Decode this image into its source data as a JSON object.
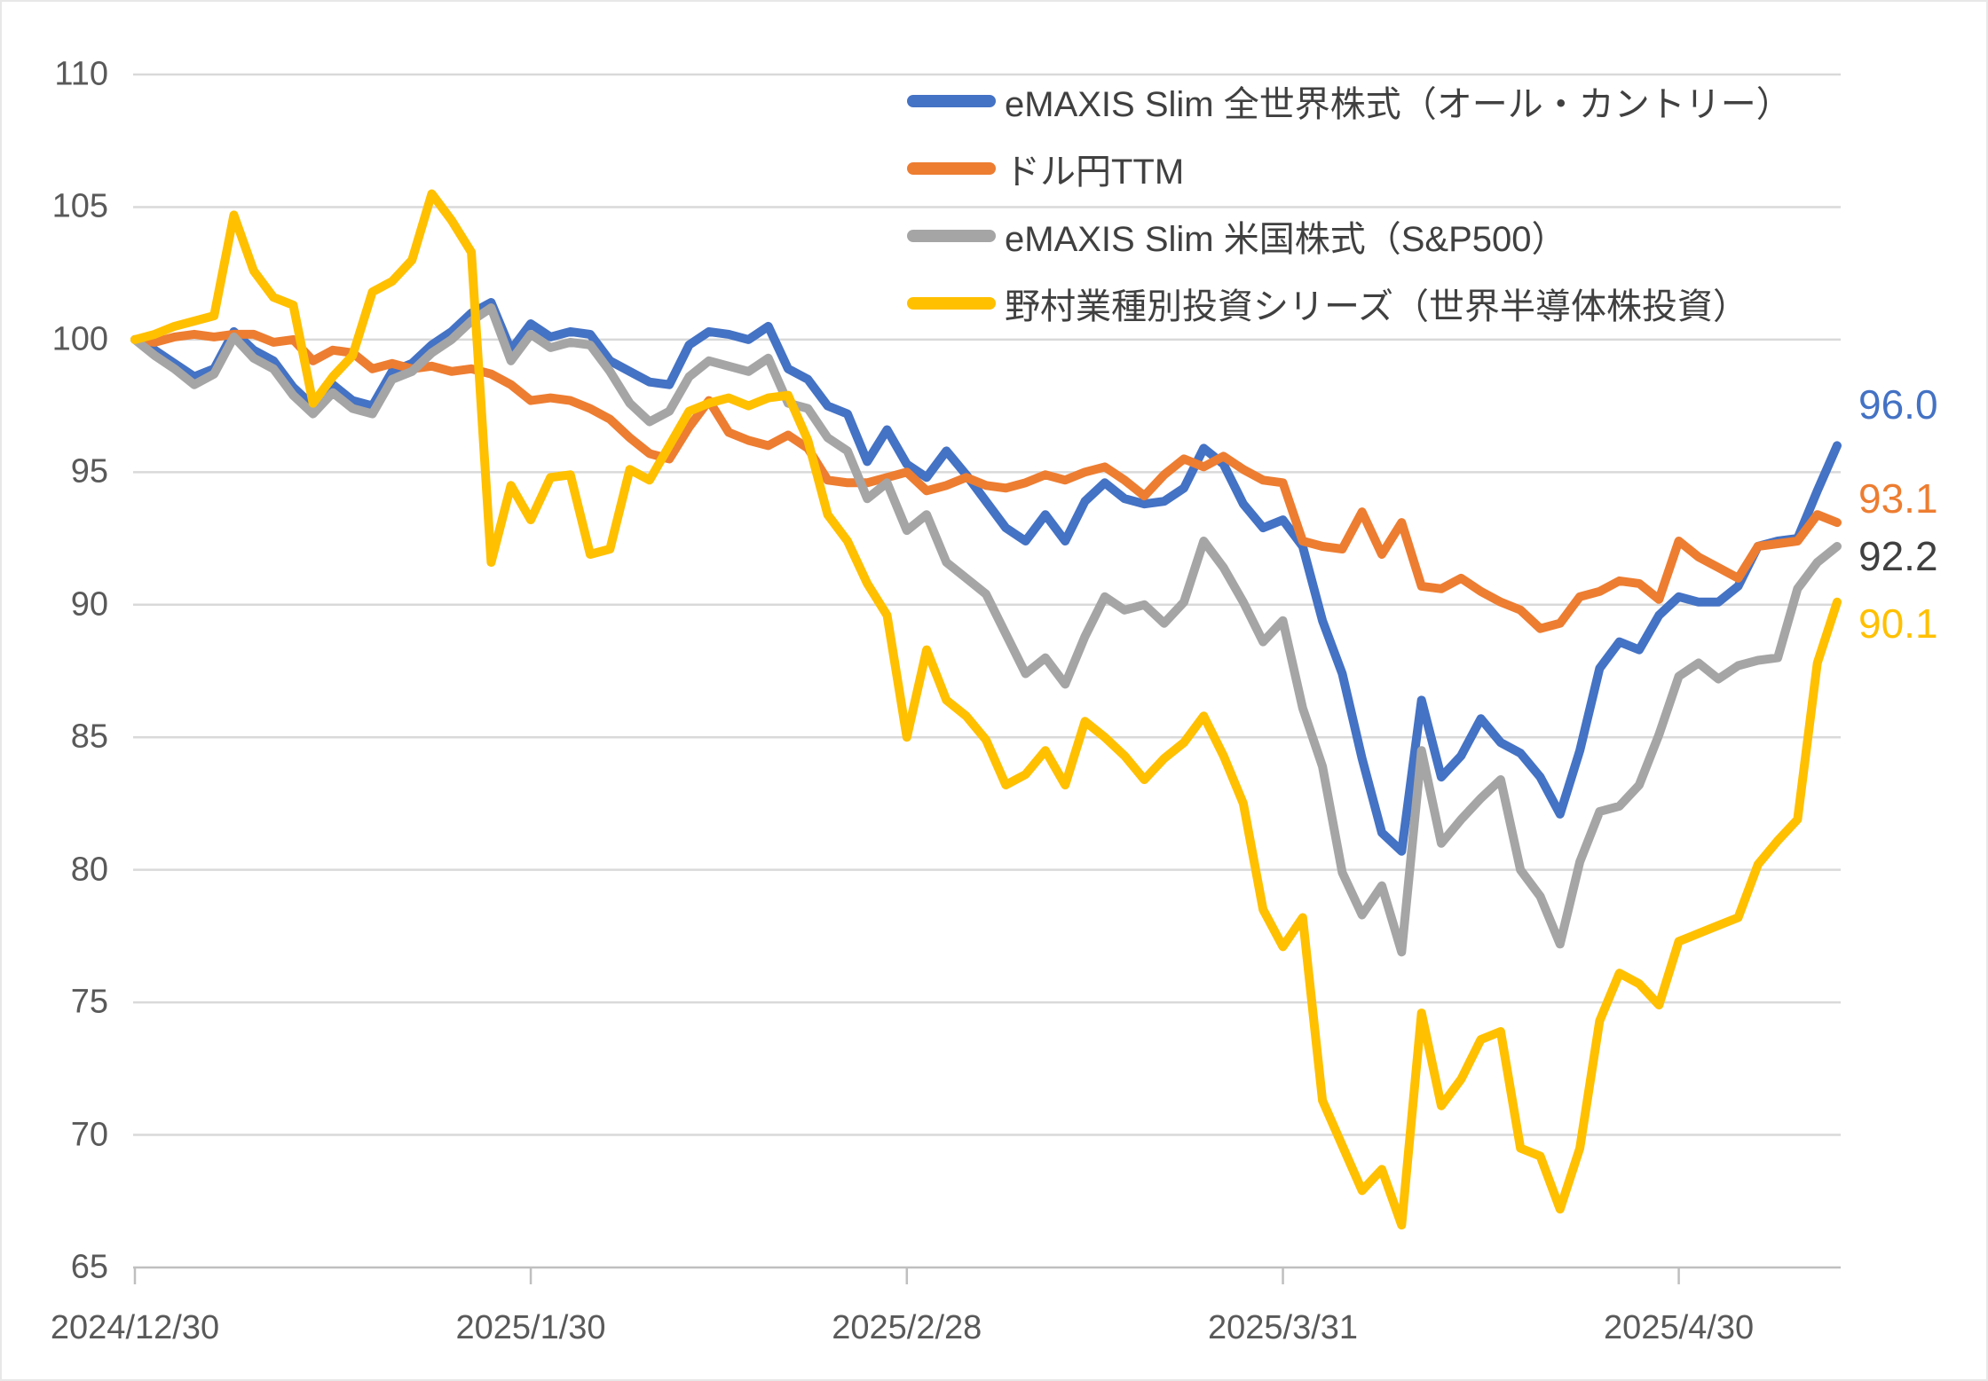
{
  "chart_data": {
    "type": "line",
    "title": "",
    "description": "Performance of four instruments indexed to 100 at 2024/12/30, daily values through mid-May 2025",
    "grid": true,
    "legend_position": "top-right-inside",
    "y_axis": {
      "min": 65,
      "max": 110,
      "step": 5,
      "ticks": [
        110,
        105,
        100,
        95,
        90,
        85,
        80,
        75,
        70,
        65
      ]
    },
    "x_axis": {
      "point_count": 87,
      "ticks": [
        {
          "label": "2024/12/30",
          "position_index": 0
        },
        {
          "label": "2025/1/30",
          "position_index": 20
        },
        {
          "label": "2025/2/28",
          "position_index": 39
        },
        {
          "label": "2025/3/31",
          "position_index": 58
        },
        {
          "label": "2025/4/30",
          "position_index": 78
        }
      ]
    },
    "series": [
      {
        "name": "eMAXIS Slim 全世界株式（オール・カントリー）",
        "color": "#4472C4",
        "end_label": "96.0",
        "end_label_color": "#4472C4",
        "values": [
          100,
          99.6,
          99.1,
          98.6,
          98.9,
          100.3,
          99.6,
          99.2,
          98.2,
          97.5,
          98.3,
          97.7,
          97.5,
          98.8,
          99.1,
          99.8,
          100.3,
          101.0,
          101.4,
          99.6,
          100.6,
          100.1,
          100.3,
          100.2,
          99.2,
          98.8,
          98.4,
          98.3,
          99.8,
          100.3,
          100.2,
          100.0,
          100.5,
          98.9,
          98.5,
          97.5,
          97.2,
          95.4,
          96.6,
          95.3,
          94.8,
          95.8,
          94.9,
          93.9,
          92.9,
          92.4,
          93.4,
          92.4,
          93.9,
          94.6,
          94.0,
          93.8,
          93.9,
          94.4,
          95.9,
          95.3,
          93.8,
          92.9,
          93.2,
          92.2,
          89.4,
          87.4,
          84.2,
          81.4,
          80.7,
          86.4,
          83.5,
          84.3,
          85.7,
          84.8,
          84.4,
          83.5,
          82.1,
          84.5,
          87.6,
          88.6,
          88.3,
          89.6,
          90.3,
          90.1,
          90.1,
          90.7,
          92.2,
          92.4,
          92.5,
          94.3,
          96.0
        ]
      },
      {
        "name": "ドル円TTM",
        "color": "#ED7D31",
        "end_label": "93.1",
        "end_label_color": "#ED7D31",
        "values": [
          100,
          99.9,
          100.1,
          100.2,
          100.1,
          100.2,
          100.2,
          99.9,
          100.0,
          99.2,
          99.6,
          99.5,
          98.9,
          99.1,
          98.9,
          99.0,
          98.8,
          98.9,
          98.7,
          98.3,
          97.7,
          97.8,
          97.7,
          97.4,
          97.0,
          96.3,
          95.7,
          95.5,
          96.7,
          97.7,
          96.5,
          96.2,
          96.0,
          96.4,
          95.9,
          94.7,
          94.6,
          94.6,
          94.8,
          95.0,
          94.3,
          94.5,
          94.8,
          94.5,
          94.4,
          94.6,
          94.9,
          94.7,
          95.0,
          95.2,
          94.7,
          94.1,
          94.9,
          95.5,
          95.2,
          95.6,
          95.1,
          94.7,
          94.6,
          92.4,
          92.2,
          92.1,
          93.5,
          91.9,
          93.1,
          90.7,
          90.6,
          91.0,
          90.5,
          90.1,
          89.8,
          89.1,
          89.3,
          90.3,
          90.5,
          90.9,
          90.8,
          90.2,
          92.4,
          91.8,
          91.4,
          91.0,
          92.2,
          92.3,
          92.4,
          93.4,
          93.1
        ]
      },
      {
        "name": "eMAXIS Slim 米国株式（S&P500）",
        "color": "#A5A5A5",
        "end_label": "92.2",
        "end_label_color": "#404040",
        "values": [
          100,
          99.4,
          98.9,
          98.3,
          98.7,
          100.1,
          99.3,
          98.9,
          97.9,
          97.2,
          98.0,
          97.4,
          97.2,
          98.5,
          98.8,
          99.5,
          100.0,
          100.7,
          101.2,
          99.2,
          100.2,
          99.7,
          99.9,
          99.8,
          98.8,
          97.6,
          96.9,
          97.3,
          98.6,
          99.2,
          99.0,
          98.8,
          99.3,
          97.6,
          97.4,
          96.3,
          95.8,
          94.0,
          94.6,
          92.8,
          93.4,
          91.6,
          91.0,
          90.4,
          88.9,
          87.4,
          88.0,
          87.0,
          88.8,
          90.3,
          89.8,
          90.0,
          89.3,
          90.1,
          92.4,
          91.4,
          90.1,
          88.6,
          89.4,
          86.1,
          83.9,
          79.9,
          78.3,
          79.4,
          76.9,
          84.5,
          81.0,
          81.9,
          82.7,
          83.4,
          80.0,
          79.0,
          77.2,
          80.3,
          82.2,
          82.4,
          83.2,
          85.1,
          87.3,
          87.8,
          87.2,
          87.7,
          87.9,
          88.0,
          90.6,
          91.6,
          92.2
        ]
      },
      {
        "name": "野村業種別投資シリーズ（世界半導体株投資）",
        "color": "#FFC000",
        "end_label": "90.1",
        "end_label_color": "#FFC000",
        "values": [
          100,
          100.2,
          100.5,
          100.7,
          100.9,
          104.7,
          102.6,
          101.6,
          101.3,
          97.6,
          98.6,
          99.4,
          101.8,
          102.2,
          103.0,
          105.5,
          104.5,
          103.3,
          91.6,
          94.5,
          93.2,
          94.8,
          94.9,
          91.9,
          92.1,
          95.1,
          94.7,
          96.0,
          97.3,
          97.6,
          97.8,
          97.5,
          97.8,
          97.9,
          96.2,
          93.4,
          92.4,
          90.8,
          89.6,
          85.0,
          88.3,
          86.4,
          85.8,
          84.9,
          83.2,
          83.6,
          84.5,
          83.2,
          85.6,
          85.0,
          84.3,
          83.4,
          84.2,
          84.8,
          85.8,
          84.3,
          82.5,
          78.5,
          77.1,
          78.2,
          71.3,
          69.6,
          67.9,
          68.7,
          66.6,
          74.6,
          71.1,
          72.1,
          73.6,
          73.9,
          69.5,
          69.2,
          67.2,
          69.5,
          74.3,
          76.1,
          75.7,
          74.9,
          77.3,
          77.6,
          77.9,
          78.2,
          80.2,
          81.1,
          81.9,
          87.8,
          90.1
        ]
      }
    ],
    "style": {
      "gridline_color": "#D9D9D9",
      "axis_line_color": "#BFBFBF",
      "axis_text_color": "#595959",
      "legend_text_color": "#404040",
      "line_width": 10
    }
  }
}
